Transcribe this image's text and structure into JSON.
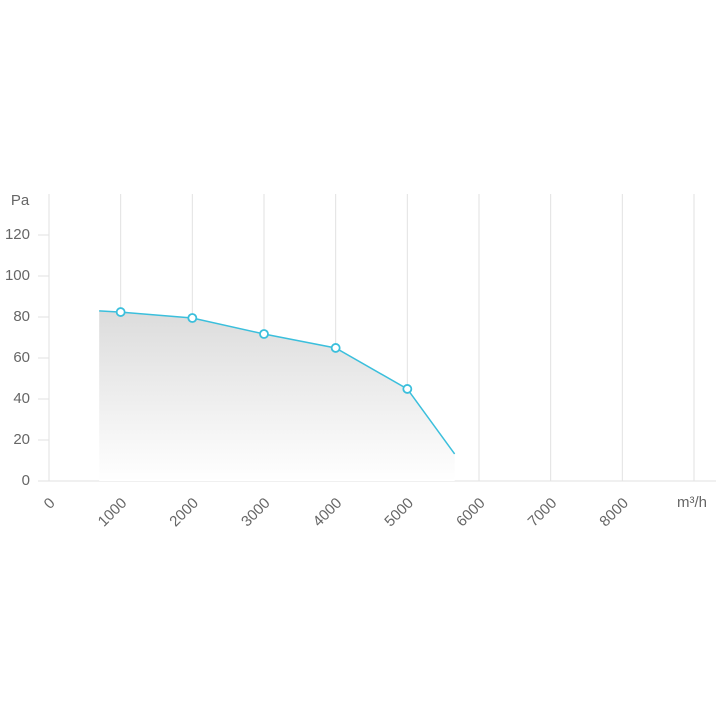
{
  "chart_data": {
    "type": "area-line",
    "y_label": "Pa",
    "x_label": "m³/h",
    "x": [
      700,
      1000,
      2000,
      3000,
      4000,
      5000,
      5660
    ],
    "values": [
      83,
      82.4,
      79.5,
      71.7,
      64.9,
      44.9,
      13.2
    ],
    "color": "#3bbfdc",
    "xlim": [
      0,
      9000
    ],
    "xticks": [
      0,
      1000,
      2000,
      3000,
      4000,
      5000,
      6000,
      7000,
      8000
    ],
    "ylim": [
      0,
      140
    ],
    "yticks": [
      0,
      20,
      40,
      60,
      80,
      100,
      120
    ],
    "grid": true
  }
}
